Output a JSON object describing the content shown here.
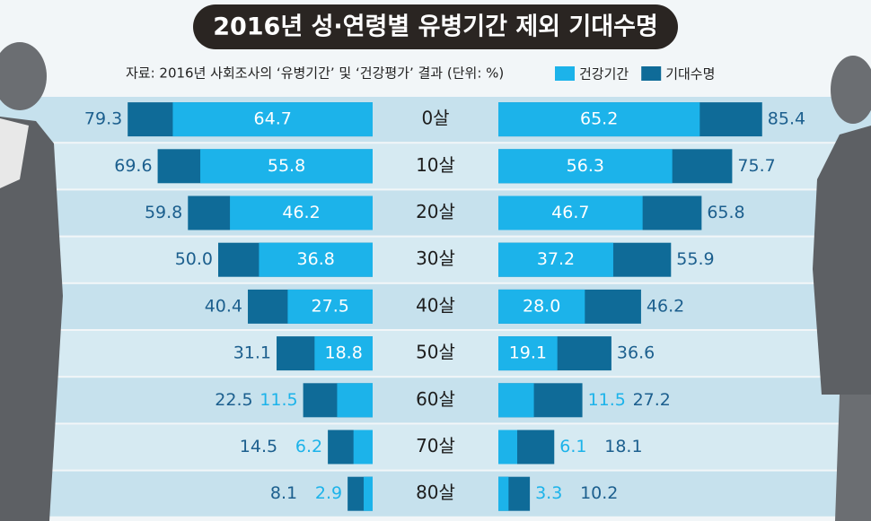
{
  "chart_data": {
    "type": "butterfly",
    "title": "2016년 성·연령별 유병기간 제외 기대수명",
    "subtitle": "자료: 2016년 사회조사의 ‘유병기간’ 및 ‘건강평가’ 결과 (단위: %)",
    "categories": [
      "0살",
      "10살",
      "20살",
      "30살",
      "40살",
      "50살",
      "60살",
      "70살",
      "80살"
    ],
    "series": [
      {
        "name": "건강기간",
        "color": "#1cb3ea",
        "male": {
          "values": [
            64.7,
            55.8,
            46.2,
            36.8,
            27.5,
            18.8,
            11.5,
            6.2,
            2.9
          ],
          "value_labels": [
            "64.7",
            "55.8",
            "46.2",
            "36.8",
            "27.5",
            "18.8",
            "11.5",
            "6.2",
            "2.9"
          ]
        },
        "female": {
          "values": [
            65.2,
            56.3,
            46.7,
            37.2,
            28.0,
            19.1,
            11.5,
            6.1,
            3.3
          ],
          "value_labels": [
            "65.2",
            "56.3",
            "46.7",
            "37.2",
            "28.0",
            "19.1",
            "11.5",
            "6.1",
            "3.3"
          ]
        }
      },
      {
        "name": "기대수명",
        "color": "#0f6b98",
        "male": {
          "values": [
            79.3,
            69.6,
            59.8,
            50.0,
            40.4,
            31.1,
            22.5,
            14.5,
            8.1
          ],
          "value_labels": [
            "79.3",
            "69.6",
            "59.8",
            "50.0",
            "40.4",
            "31.1",
            "22.5",
            "14.5",
            "8.1"
          ]
        },
        "female": {
          "values": [
            85.4,
            75.7,
            65.8,
            55.9,
            46.2,
            36.6,
            27.2,
            18.1,
            10.2
          ],
          "value_labels": [
            "85.4",
            "75.7",
            "65.8",
            "55.9",
            "46.2",
            "36.6",
            "27.2",
            "18.1",
            "10.2"
          ]
        }
      }
    ]
  }
}
